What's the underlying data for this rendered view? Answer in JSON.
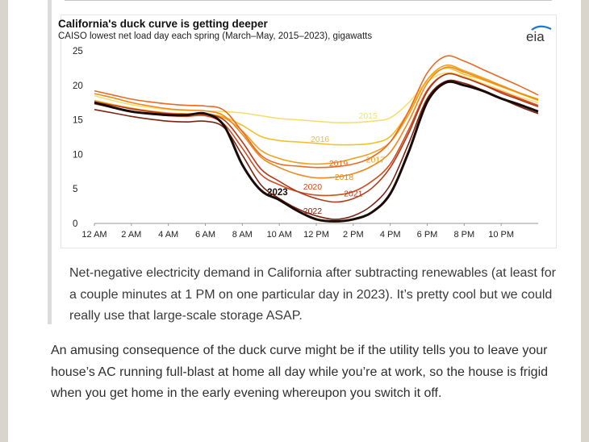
{
  "figure": {
    "title": "California's duck curve is getting deeper",
    "subtitle": "CAISO lowest net load day each spring (March–May, 2015–2023), gigawatts",
    "logo_text": "eia"
  },
  "caption": "Net-negative electricity demand in California after subtracting renewables (at least for a couple minutes at 1 PM on one particular day in 2023). It’s pretty cool but we could really use that large-scale storage ASAP.",
  "body_text": "An amusing consequence of the duck curve might be if the utility tells you to leave your house’s AC running full-blast at home all day while you’re at work, so the house is frigid when you get home in the early evening whereupon you switch it off.",
  "colors": {
    "accent_2023": "#1a0a05",
    "quote_bar": "#dcdcdc",
    "page_bg": "#d9d4cc"
  },
  "chart_data": {
    "type": "line",
    "title": "California's duck curve is getting deeper",
    "subtitle": "CAISO lowest net load day each spring (March–May, 2015–2023), gigawatts",
    "xlabel": "",
    "ylabel": "",
    "ylim": [
      0,
      25
    ],
    "yticks": [
      "0",
      "5",
      "10",
      "15",
      "20",
      "25"
    ],
    "xlim": [
      0,
      24
    ],
    "xticks": [
      "12 AM",
      "2 AM",
      "4 AM",
      "6 AM",
      "8 AM",
      "10 AM",
      "12 PM",
      "2 PM",
      "4 PM",
      "6 PM",
      "8 PM",
      "10 PM"
    ],
    "grid": false,
    "x": [
      0,
      1,
      2,
      3,
      4,
      5,
      6,
      7,
      8,
      9,
      10,
      11,
      12,
      13,
      14,
      15,
      16,
      17,
      18,
      19,
      20,
      21,
      22,
      23,
      24
    ],
    "series": [
      {
        "name": "2015",
        "color": "#f5de72",
        "values": [
          18.5,
          17.8,
          17.2,
          16.8,
          16.5,
          16.4,
          16.3,
          16.2,
          16.0,
          15.6,
          15.2,
          15.0,
          14.8,
          14.6,
          14.6,
          14.8,
          15.3,
          17.5,
          20.5,
          21.8,
          21.3,
          20.3,
          19.3,
          18.3,
          17.5
        ]
      },
      {
        "name": "2016",
        "color": "#f3c02c",
        "values": [
          17.8,
          17.2,
          16.6,
          16.2,
          15.9,
          15.8,
          15.8,
          15.4,
          14.2,
          12.6,
          12.0,
          11.8,
          11.6,
          11.4,
          11.4,
          11.6,
          12.6,
          16.2,
          20.8,
          22.5,
          21.6,
          20.8,
          19.8,
          18.8,
          17.8
        ]
      },
      {
        "name": "2017",
        "color": "#f0a020",
        "values": [
          17.8,
          17.2,
          16.7,
          16.3,
          16.0,
          15.9,
          15.9,
          15.3,
          13.4,
          10.6,
          9.4,
          8.8,
          8.6,
          8.8,
          9.4,
          10.2,
          11.8,
          15.8,
          20.8,
          22.9,
          22.1,
          21.1,
          20.0,
          18.9,
          18.0
        ]
      },
      {
        "name": "2018",
        "color": "#ec8a20",
        "values": [
          18.8,
          18.2,
          17.5,
          17.0,
          16.6,
          16.4,
          16.3,
          15.6,
          12.9,
          9.6,
          8.1,
          7.1,
          6.6,
          6.7,
          7.2,
          8.3,
          10.3,
          14.8,
          20.3,
          22.6,
          21.9,
          20.9,
          19.9,
          18.9,
          17.9
        ]
      },
      {
        "name": "2019",
        "color": "#e86a24",
        "values": [
          19.2,
          18.6,
          18.0,
          17.6,
          17.3,
          17.1,
          17.0,
          16.4,
          13.3,
          9.9,
          8.6,
          8.3,
          8.1,
          8.2,
          8.6,
          9.6,
          11.8,
          16.3,
          21.8,
          24.2,
          23.5,
          22.3,
          21.1,
          19.9,
          18.6
        ]
      },
      {
        "name": "2020",
        "color": "#d14e22",
        "values": [
          17.3,
          16.8,
          16.3,
          15.9,
          15.6,
          15.5,
          15.6,
          14.4,
          10.9,
          7.1,
          5.6,
          4.6,
          4.1,
          4.1,
          4.6,
          6.1,
          8.6,
          13.6,
          19.3,
          21.6,
          21.1,
          20.1,
          19.1,
          18.1,
          17.1
        ]
      },
      {
        "name": "2021",
        "color": "#b23a1c",
        "values": [
          17.6,
          17.1,
          16.6,
          16.2,
          15.9,
          15.8,
          15.8,
          15.0,
          11.8,
          7.9,
          6.1,
          4.6,
          3.6,
          3.1,
          3.6,
          5.1,
          8.1,
          13.1,
          19.1,
          21.6,
          21.1,
          20.1,
          18.9,
          17.9,
          16.9
        ]
      },
      {
        "name": "2022",
        "color": "#7a2412",
        "values": [
          16.5,
          16.0,
          15.5,
          15.1,
          14.8,
          14.7,
          14.8,
          13.9,
          9.9,
          5.6,
          3.6,
          2.1,
          1.1,
          0.6,
          1.1,
          2.6,
          5.6,
          11.6,
          18.1,
          20.6,
          20.3,
          19.3,
          18.1,
          16.9,
          15.9
        ]
      },
      {
        "name": "2023",
        "color": "#1a0a05",
        "values": [
          17.5,
          16.8,
          16.2,
          15.9,
          15.7,
          15.7,
          15.9,
          14.2,
          8.5,
          4.8,
          3.4,
          1.8,
          0.6,
          0.3,
          0.6,
          1.6,
          4.3,
          10.4,
          17.6,
          20.4,
          20.0,
          19.2,
          18.1,
          17.2,
          16.2
        ]
      }
    ]
  }
}
